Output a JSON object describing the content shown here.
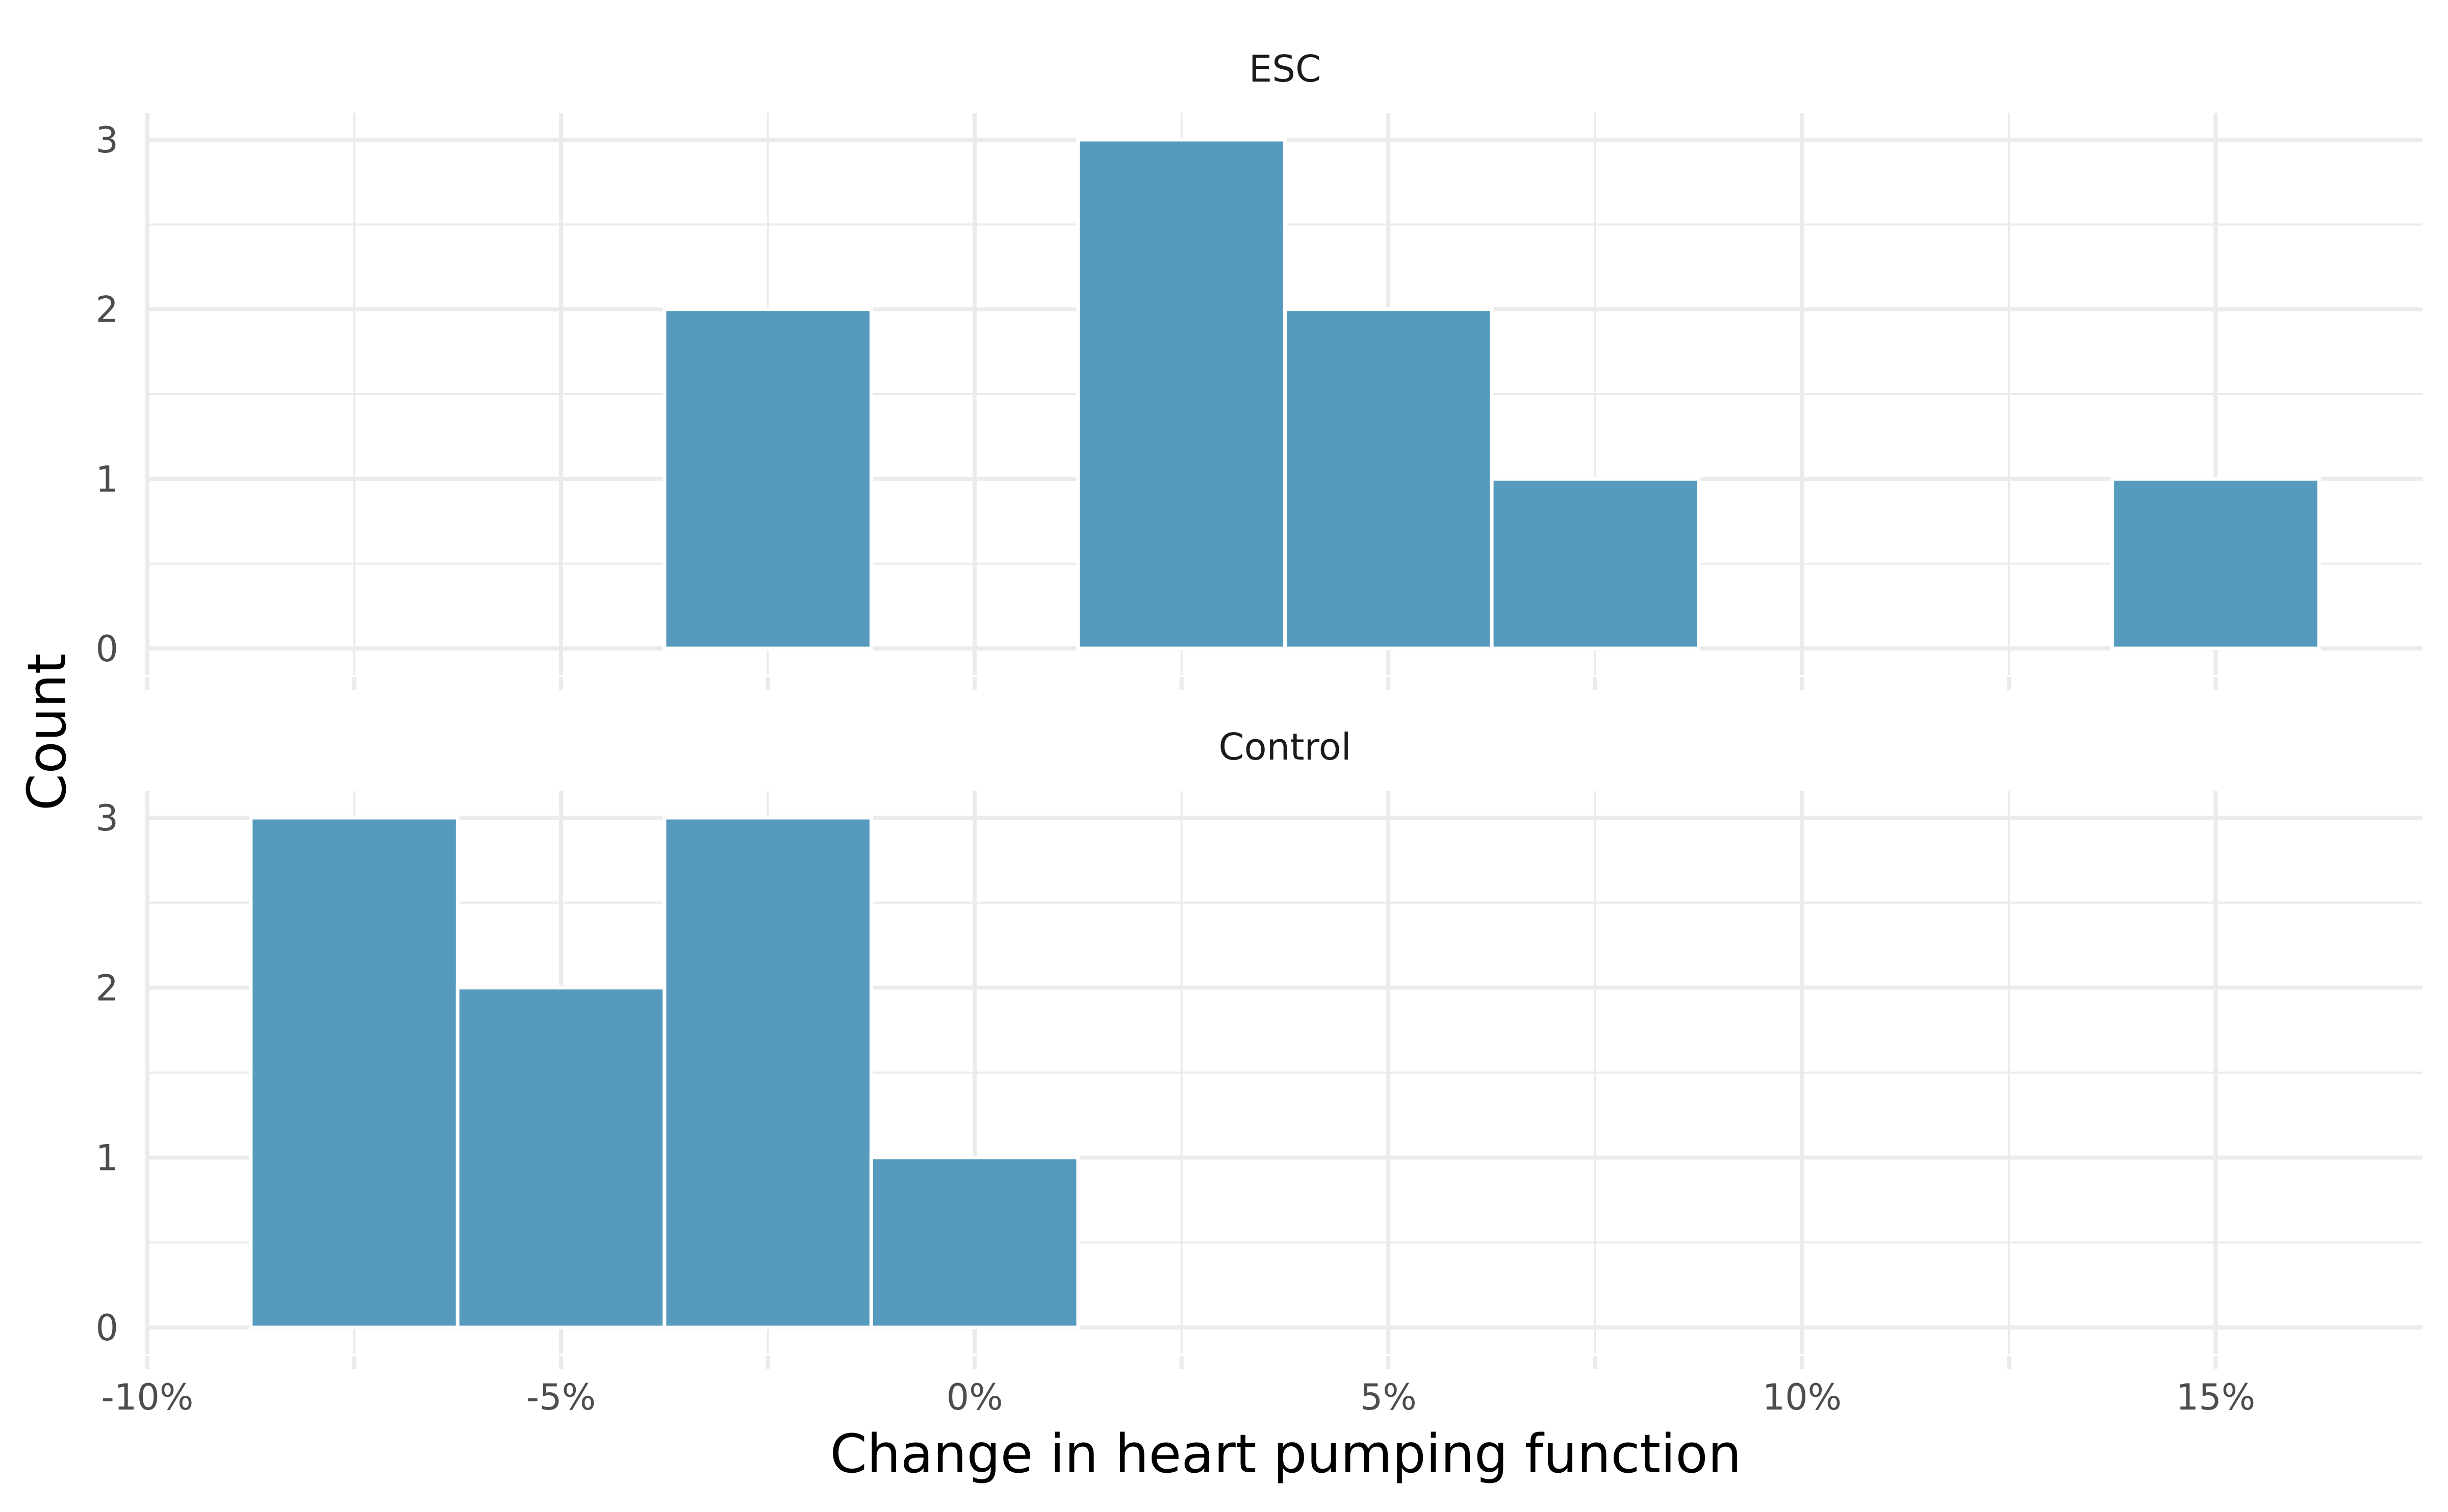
{
  "chart_data": {
    "type": "bar",
    "xlabel": "Change in heart pumping function",
    "ylabel": "Count",
    "xlim": [
      -10,
      17.5
    ],
    "ylim": [
      0,
      3
    ],
    "bin_width": 2.5,
    "x_ticks": [
      -10,
      -5,
      0,
      5,
      10,
      15
    ],
    "x_tick_labels": [
      "-10%",
      "-5%",
      "0%",
      "5%",
      "10%",
      "15%"
    ],
    "y_ticks": [
      0,
      1,
      2,
      3
    ],
    "y_tick_labels": [
      "0",
      "1",
      "2",
      "3"
    ],
    "bar_color": "#569bbe",
    "grid": true,
    "panels": [
      {
        "name": "ESC",
        "bins": [
          {
            "x0": -8.75,
            "x1": -6.25,
            "count": 0
          },
          {
            "x0": -6.25,
            "x1": -3.75,
            "count": 0
          },
          {
            "x0": -3.75,
            "x1": -1.25,
            "count": 2
          },
          {
            "x0": -1.25,
            "x1": 1.25,
            "count": 0
          },
          {
            "x0": 1.25,
            "x1": 3.75,
            "count": 3
          },
          {
            "x0": 3.75,
            "x1": 6.25,
            "count": 2
          },
          {
            "x0": 6.25,
            "x1": 8.75,
            "count": 1
          },
          {
            "x0": 8.75,
            "x1": 11.25,
            "count": 0
          },
          {
            "x0": 11.25,
            "x1": 13.75,
            "count": 0
          },
          {
            "x0": 13.75,
            "x1": 16.25,
            "count": 1
          }
        ]
      },
      {
        "name": "Control",
        "bins": [
          {
            "x0": -8.75,
            "x1": -6.25,
            "count": 3
          },
          {
            "x0": -6.25,
            "x1": -3.75,
            "count": 2
          },
          {
            "x0": -3.75,
            "x1": -1.25,
            "count": 3
          },
          {
            "x0": -1.25,
            "x1": 1.25,
            "count": 1
          },
          {
            "x0": 1.25,
            "x1": 3.75,
            "count": 0
          },
          {
            "x0": 3.75,
            "x1": 6.25,
            "count": 0
          },
          {
            "x0": 6.25,
            "x1": 8.75,
            "count": 0
          },
          {
            "x0": 8.75,
            "x1": 11.25,
            "count": 0
          },
          {
            "x0": 11.25,
            "x1": 13.75,
            "count": 0
          },
          {
            "x0": 13.75,
            "x1": 16.25,
            "count": 0
          }
        ]
      }
    ]
  }
}
